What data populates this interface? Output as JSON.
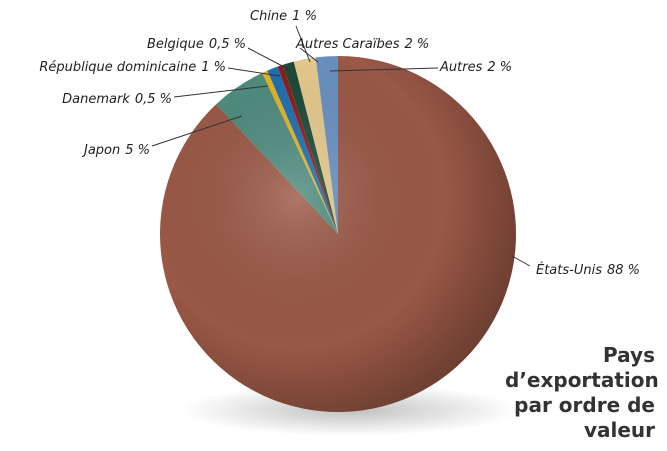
{
  "chart_data": {
    "type": "pie",
    "title": "Pays d’exportation par ordre de valeur",
    "categories": [
      "États-Unis",
      "Japon",
      "Danemark",
      "République dominicaine",
      "Belgique",
      "Chine",
      "Autres Caraïbes",
      "Autres"
    ],
    "values": [
      88,
      5,
      0.5,
      1,
      0.5,
      1,
      2,
      2
    ],
    "value_labels": [
      "88 %",
      "5 %",
      "0,5 %",
      "1 %",
      "0,5 %",
      "1 %",
      "2 %",
      "2 %"
    ],
    "colors": [
      "#9a5846",
      "#4f8c7e",
      "#e6b420",
      "#1f6fae",
      "#8e1c1c",
      "#1d4a37",
      "#e5c98c",
      "#6a90c0"
    ]
  }
}
